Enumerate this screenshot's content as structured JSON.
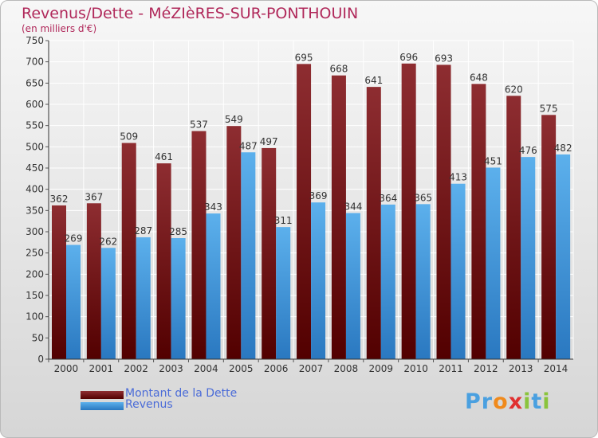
{
  "header": {
    "title": "Revenus/Dette - MéZIèRES-SUR-PONTHOUIN",
    "subtitle": "(en milliers d'€)"
  },
  "colors": {
    "dette": "#7a1a1e",
    "revenus": "#4a9fe0",
    "title": "#b0285a",
    "legend_text": "#4a6bd8"
  },
  "chart_data": {
    "type": "bar",
    "title": "Revenus/Dette - MéZIèRES-SUR-PONTHOUIN",
    "subtitle": "(en milliers d'€)",
    "xlabel": "",
    "ylabel": "",
    "ylim": [
      0,
      750
    ],
    "yticks": [
      0,
      50,
      100,
      150,
      200,
      250,
      300,
      350,
      400,
      450,
      500,
      550,
      600,
      650,
      700,
      750
    ],
    "grid": true,
    "legend_position": "bottom-left",
    "categories": [
      "2000",
      "2001",
      "2002",
      "2003",
      "2004",
      "2005",
      "2006",
      "2007",
      "2008",
      "2009",
      "2010",
      "2011",
      "2012",
      "2013",
      "2014"
    ],
    "series": [
      {
        "name": "Montant de la Dette",
        "color": "#7a1a1e",
        "values": [
          362,
          367,
          509,
          461,
          537,
          549,
          497,
          695,
          668,
          641,
          696,
          693,
          648,
          620,
          575
        ]
      },
      {
        "name": "Revenus",
        "color": "#4a9fe0",
        "values": [
          269,
          262,
          287,
          285,
          343,
          487,
          311,
          369,
          344,
          364,
          365,
          413,
          451,
          476,
          482
        ]
      }
    ]
  },
  "legend": {
    "items": [
      {
        "label": "Montant de la Dette"
      },
      {
        "label": "Revenus"
      }
    ]
  },
  "logo": {
    "letters": [
      "P",
      "r",
      "o",
      "x",
      "i",
      "t",
      "i"
    ],
    "colors": [
      "#4aa0e0",
      "#4aa0e0",
      "#f08a1c",
      "#e03030",
      "#8ac43c",
      "#4aa0e0",
      "#8ac43c"
    ]
  }
}
